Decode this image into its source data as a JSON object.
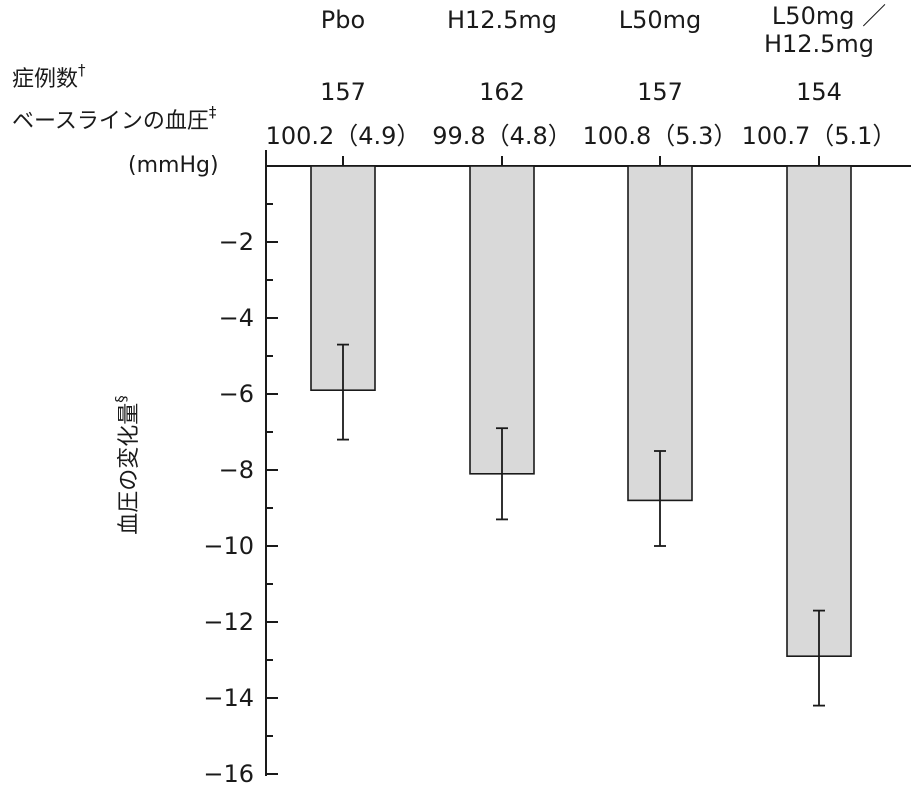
{
  "chart_data": {
    "type": "bar",
    "categories": [
      [
        "Pbo"
      ],
      [
        "H12.5mg"
      ],
      [
        "L50mg"
      ],
      [
        "L50mg ／",
        "H12.5mg"
      ]
    ],
    "values": [
      -5.9,
      -8.1,
      -8.8,
      -12.9
    ],
    "error_low": [
      -7.2,
      -9.3,
      -10.0,
      -14.2
    ],
    "error_high": [
      -4.7,
      -6.9,
      -7.5,
      -11.7
    ],
    "n_label": "症例数",
    "n_mark": "†",
    "n": [
      "157",
      "162",
      "157",
      "154"
    ],
    "baseline_label": "ベースラインの血圧",
    "baseline_mark": "‡",
    "baseline_unit": "(mmHg)",
    "baseline": [
      "100.2（4.9）",
      "99.8（4.8）",
      "100.8（5.3）",
      "100.7（5.1）"
    ],
    "ylabel": "血圧の変化量",
    "ylabel_mark": "§",
    "ylim": [
      -16,
      0
    ],
    "yticks": [
      -2,
      -4,
      -6,
      -8,
      -10,
      -12,
      -14,
      -16
    ],
    "ytick_labels": [
      "−2",
      "−4",
      "−6",
      "−8",
      "−10",
      "−12",
      "−14",
      "−16"
    ],
    "minor_tick_step": 1,
    "grid": false,
    "colors": {
      "bar_fill": "#d9d9d9",
      "stroke": "#1a1a1a"
    }
  }
}
